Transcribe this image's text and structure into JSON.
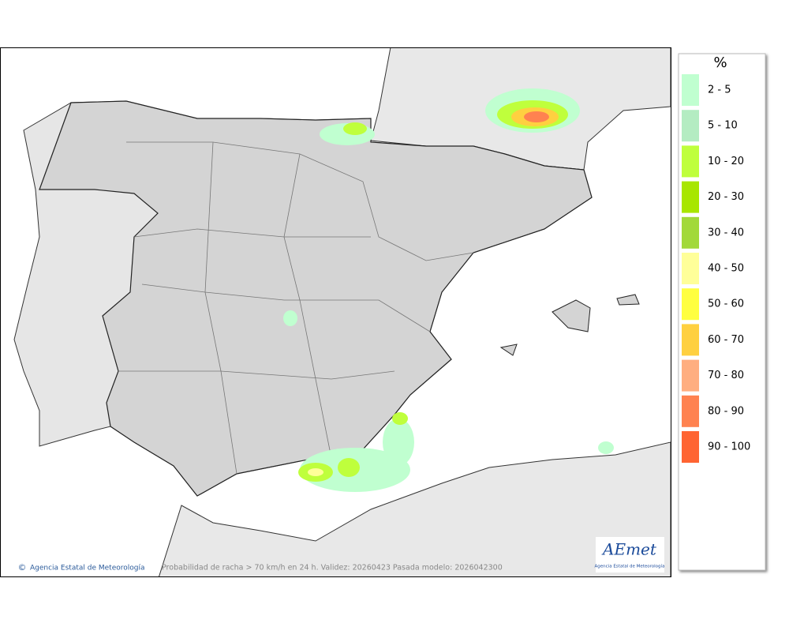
{
  "map": {
    "caption": "Probabilidad de racha > 70 km/h en 24 h. Validez: 20260423 Pasada modelo: 2026042300",
    "credit": {
      "symbol": "©",
      "text": "Agencia Estatal de Meteorología"
    },
    "logo": {
      "title": "AEmet",
      "subtitle": "Agencia Estatal de Meteorología"
    }
  },
  "legend": {
    "title": "%",
    "items": [
      {
        "label": "2 - 5",
        "color": "#c0ffd0"
      },
      {
        "label": "5 - 10",
        "color": "#b4ecc2"
      },
      {
        "label": "10 - 20",
        "color": "#bfff3c"
      },
      {
        "label": "20 - 30",
        "color": "#a8e600"
      },
      {
        "label": "30 - 40",
        "color": "#a2d93a"
      },
      {
        "label": "40 - 50",
        "color": "#ffff99"
      },
      {
        "label": "50 - 60",
        "color": "#ffff40"
      },
      {
        "label": "60 - 70",
        "color": "#ffd040"
      },
      {
        "label": "70 - 80",
        "color": "#ffae80"
      },
      {
        "label": "80 - 90",
        "color": "#ff8250"
      },
      {
        "label": "90 - 100",
        "color": "#ff6432"
      }
    ]
  }
}
